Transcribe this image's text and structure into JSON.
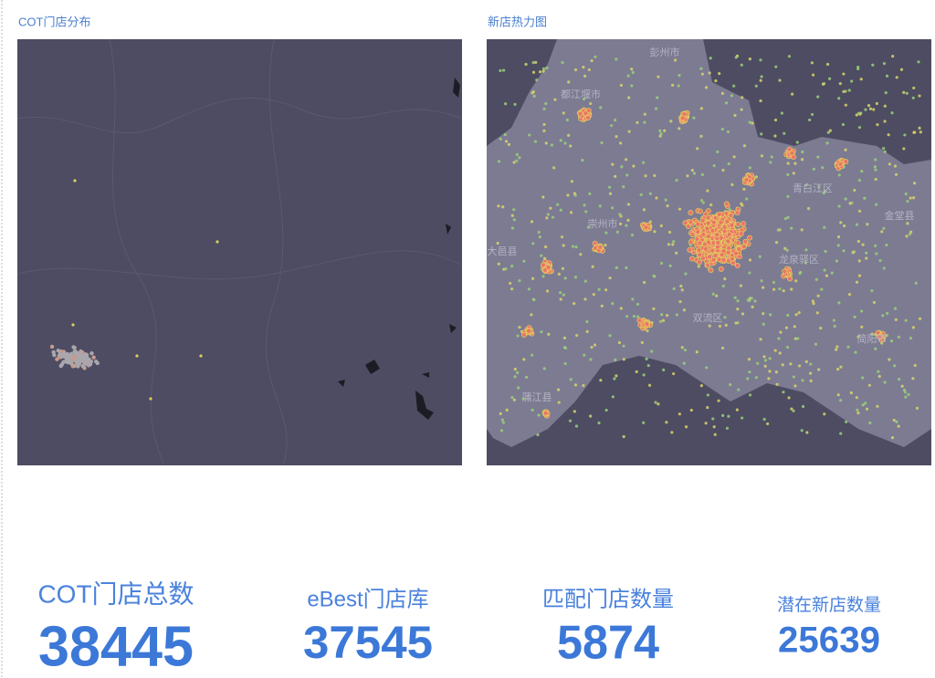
{
  "panels": [
    {
      "title": "COT门店分布"
    },
    {
      "title": "新店热力图",
      "places": [
        "彭州市",
        "都江堰市",
        "崇州市",
        "大邑县",
        "青白江区",
        "金堂县",
        "龙泉驿区",
        "双流区",
        "简阳市",
        "蒲江县"
      ]
    }
  ],
  "kpis": [
    {
      "label": "COT门店总数",
      "value": 38445
    },
    {
      "label": "eBest门店库",
      "value": 37545
    },
    {
      "label": "匹配门店数量",
      "value": 5874
    },
    {
      "label": "潜在新店数量",
      "value": 25639
    }
  ]
}
